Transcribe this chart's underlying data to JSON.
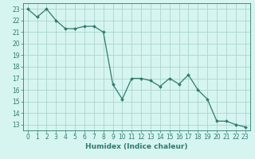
{
  "x": [
    0,
    1,
    2,
    3,
    4,
    5,
    6,
    7,
    8,
    9,
    10,
    11,
    12,
    13,
    14,
    15,
    16,
    17,
    18,
    19,
    20,
    21,
    22,
    23
  ],
  "y": [
    23,
    22.3,
    23,
    22,
    21.3,
    21.3,
    21.5,
    21.5,
    21,
    16.5,
    15.2,
    17,
    17,
    16.8,
    16.3,
    17,
    16.5,
    17.3,
    16,
    15.2,
    13.3,
    13.3,
    13,
    12.8
  ],
  "line_color": "#2e7b6e",
  "marker": "D",
  "marker_size": 2.0,
  "bg_color": "#d6f5f0",
  "grid_color": "#aad4ce",
  "xlabel": "Humidex (Indice chaleur)",
  "xlim": [
    -0.5,
    23.5
  ],
  "ylim": [
    12.5,
    23.5
  ],
  "yticks": [
    13,
    14,
    15,
    16,
    17,
    18,
    19,
    20,
    21,
    22,
    23
  ],
  "xticks": [
    0,
    1,
    2,
    3,
    4,
    5,
    6,
    7,
    8,
    9,
    10,
    11,
    12,
    13,
    14,
    15,
    16,
    17,
    18,
    19,
    20,
    21,
    22,
    23
  ],
  "tick_color": "#2e7b6e",
  "label_fontsize": 6.5,
  "tick_fontsize": 5.5,
  "linewidth": 0.9
}
